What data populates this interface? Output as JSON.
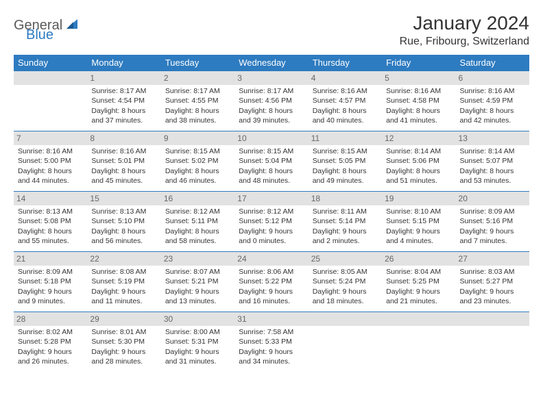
{
  "brand": {
    "part1": "General",
    "part2": "Blue"
  },
  "title": "January 2024",
  "location": "Rue, Fribourg, Switzerland",
  "colors": {
    "accent": "#2d7bc0",
    "daynum_bg": "#e2e2e2",
    "daynum_fg": "#666666",
    "text": "#333333",
    "bg": "#ffffff"
  },
  "weekdays": [
    "Sunday",
    "Monday",
    "Tuesday",
    "Wednesday",
    "Thursday",
    "Friday",
    "Saturday"
  ],
  "weeks": [
    [
      {
        "num": "",
        "lines": []
      },
      {
        "num": "1",
        "lines": [
          "Sunrise: 8:17 AM",
          "Sunset: 4:54 PM",
          "Daylight: 8 hours",
          "and 37 minutes."
        ]
      },
      {
        "num": "2",
        "lines": [
          "Sunrise: 8:17 AM",
          "Sunset: 4:55 PM",
          "Daylight: 8 hours",
          "and 38 minutes."
        ]
      },
      {
        "num": "3",
        "lines": [
          "Sunrise: 8:17 AM",
          "Sunset: 4:56 PM",
          "Daylight: 8 hours",
          "and 39 minutes."
        ]
      },
      {
        "num": "4",
        "lines": [
          "Sunrise: 8:16 AM",
          "Sunset: 4:57 PM",
          "Daylight: 8 hours",
          "and 40 minutes."
        ]
      },
      {
        "num": "5",
        "lines": [
          "Sunrise: 8:16 AM",
          "Sunset: 4:58 PM",
          "Daylight: 8 hours",
          "and 41 minutes."
        ]
      },
      {
        "num": "6",
        "lines": [
          "Sunrise: 8:16 AM",
          "Sunset: 4:59 PM",
          "Daylight: 8 hours",
          "and 42 minutes."
        ]
      }
    ],
    [
      {
        "num": "7",
        "lines": [
          "Sunrise: 8:16 AM",
          "Sunset: 5:00 PM",
          "Daylight: 8 hours",
          "and 44 minutes."
        ]
      },
      {
        "num": "8",
        "lines": [
          "Sunrise: 8:16 AM",
          "Sunset: 5:01 PM",
          "Daylight: 8 hours",
          "and 45 minutes."
        ]
      },
      {
        "num": "9",
        "lines": [
          "Sunrise: 8:15 AM",
          "Sunset: 5:02 PM",
          "Daylight: 8 hours",
          "and 46 minutes."
        ]
      },
      {
        "num": "10",
        "lines": [
          "Sunrise: 8:15 AM",
          "Sunset: 5:04 PM",
          "Daylight: 8 hours",
          "and 48 minutes."
        ]
      },
      {
        "num": "11",
        "lines": [
          "Sunrise: 8:15 AM",
          "Sunset: 5:05 PM",
          "Daylight: 8 hours",
          "and 49 minutes."
        ]
      },
      {
        "num": "12",
        "lines": [
          "Sunrise: 8:14 AM",
          "Sunset: 5:06 PM",
          "Daylight: 8 hours",
          "and 51 minutes."
        ]
      },
      {
        "num": "13",
        "lines": [
          "Sunrise: 8:14 AM",
          "Sunset: 5:07 PM",
          "Daylight: 8 hours",
          "and 53 minutes."
        ]
      }
    ],
    [
      {
        "num": "14",
        "lines": [
          "Sunrise: 8:13 AM",
          "Sunset: 5:08 PM",
          "Daylight: 8 hours",
          "and 55 minutes."
        ]
      },
      {
        "num": "15",
        "lines": [
          "Sunrise: 8:13 AM",
          "Sunset: 5:10 PM",
          "Daylight: 8 hours",
          "and 56 minutes."
        ]
      },
      {
        "num": "16",
        "lines": [
          "Sunrise: 8:12 AM",
          "Sunset: 5:11 PM",
          "Daylight: 8 hours",
          "and 58 minutes."
        ]
      },
      {
        "num": "17",
        "lines": [
          "Sunrise: 8:12 AM",
          "Sunset: 5:12 PM",
          "Daylight: 9 hours",
          "and 0 minutes."
        ]
      },
      {
        "num": "18",
        "lines": [
          "Sunrise: 8:11 AM",
          "Sunset: 5:14 PM",
          "Daylight: 9 hours",
          "and 2 minutes."
        ]
      },
      {
        "num": "19",
        "lines": [
          "Sunrise: 8:10 AM",
          "Sunset: 5:15 PM",
          "Daylight: 9 hours",
          "and 4 minutes."
        ]
      },
      {
        "num": "20",
        "lines": [
          "Sunrise: 8:09 AM",
          "Sunset: 5:16 PM",
          "Daylight: 9 hours",
          "and 7 minutes."
        ]
      }
    ],
    [
      {
        "num": "21",
        "lines": [
          "Sunrise: 8:09 AM",
          "Sunset: 5:18 PM",
          "Daylight: 9 hours",
          "and 9 minutes."
        ]
      },
      {
        "num": "22",
        "lines": [
          "Sunrise: 8:08 AM",
          "Sunset: 5:19 PM",
          "Daylight: 9 hours",
          "and 11 minutes."
        ]
      },
      {
        "num": "23",
        "lines": [
          "Sunrise: 8:07 AM",
          "Sunset: 5:21 PM",
          "Daylight: 9 hours",
          "and 13 minutes."
        ]
      },
      {
        "num": "24",
        "lines": [
          "Sunrise: 8:06 AM",
          "Sunset: 5:22 PM",
          "Daylight: 9 hours",
          "and 16 minutes."
        ]
      },
      {
        "num": "25",
        "lines": [
          "Sunrise: 8:05 AM",
          "Sunset: 5:24 PM",
          "Daylight: 9 hours",
          "and 18 minutes."
        ]
      },
      {
        "num": "26",
        "lines": [
          "Sunrise: 8:04 AM",
          "Sunset: 5:25 PM",
          "Daylight: 9 hours",
          "and 21 minutes."
        ]
      },
      {
        "num": "27",
        "lines": [
          "Sunrise: 8:03 AM",
          "Sunset: 5:27 PM",
          "Daylight: 9 hours",
          "and 23 minutes."
        ]
      }
    ],
    [
      {
        "num": "28",
        "lines": [
          "Sunrise: 8:02 AM",
          "Sunset: 5:28 PM",
          "Daylight: 9 hours",
          "and 26 minutes."
        ]
      },
      {
        "num": "29",
        "lines": [
          "Sunrise: 8:01 AM",
          "Sunset: 5:30 PM",
          "Daylight: 9 hours",
          "and 28 minutes."
        ]
      },
      {
        "num": "30",
        "lines": [
          "Sunrise: 8:00 AM",
          "Sunset: 5:31 PM",
          "Daylight: 9 hours",
          "and 31 minutes."
        ]
      },
      {
        "num": "31",
        "lines": [
          "Sunrise: 7:58 AM",
          "Sunset: 5:33 PM",
          "Daylight: 9 hours",
          "and 34 minutes."
        ]
      },
      {
        "num": "",
        "lines": []
      },
      {
        "num": "",
        "lines": []
      },
      {
        "num": "",
        "lines": []
      }
    ]
  ]
}
